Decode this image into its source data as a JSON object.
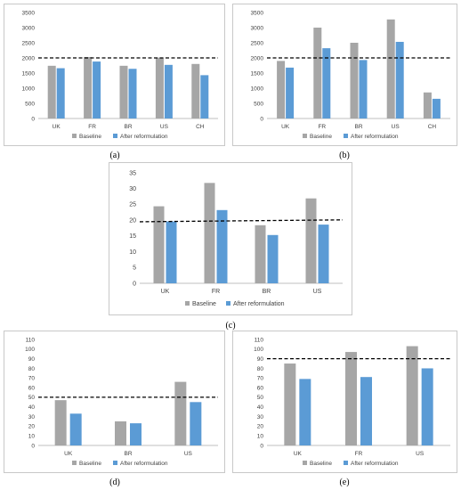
{
  "captions": [
    "(a)",
    "(b)",
    "(c)",
    "(d)",
    "(e)"
  ],
  "colors": {
    "baseline": "#a6a6a6",
    "after": "#5b9bd5",
    "axis": "#bfbfbf",
    "dash": "#000000",
    "text": "#404040"
  },
  "legend": {
    "baseline": "Baseline",
    "after": "After reformulation"
  },
  "chart_data": [
    {
      "id": "a",
      "type": "bar",
      "categories": [
        "UK",
        "FR",
        "BR",
        "US",
        "CH"
      ],
      "series": [
        {
          "name": "Baseline",
          "values": [
            1740,
            2030,
            1740,
            2010,
            1800
          ]
        },
        {
          "name": "After reformulation",
          "values": [
            1660,
            1880,
            1640,
            1770,
            1430
          ]
        }
      ],
      "ylim": [
        0,
        3500
      ],
      "yticks": [
        0,
        500,
        1000,
        1500,
        2000,
        2500,
        3000,
        3500
      ],
      "reference_line": 2000,
      "legend_position": "bottom",
      "grid": false
    },
    {
      "id": "b",
      "type": "bar",
      "categories": [
        "UK",
        "FR",
        "BR",
        "US",
        "CH"
      ],
      "series": [
        {
          "name": "Baseline",
          "values": [
            1900,
            3000,
            2500,
            3270,
            860
          ]
        },
        {
          "name": "After reformulation",
          "values": [
            1680,
            2320,
            1930,
            2530,
            650
          ]
        }
      ],
      "ylim": [
        0,
        3500
      ],
      "yticks": [
        0,
        500,
        1000,
        1500,
        2000,
        2500,
        3000,
        3500
      ],
      "reference_line": 2000,
      "legend_position": "bottom",
      "grid": false
    },
    {
      "id": "c",
      "type": "bar",
      "categories": [
        "UK",
        "FR",
        "BR",
        "US"
      ],
      "series": [
        {
          "name": "Baseline",
          "values": [
            24.4,
            31.8,
            18.4,
            26.9
          ]
        },
        {
          "name": "After reformulation",
          "values": [
            19.6,
            23.2,
            15.3,
            18.6
          ]
        }
      ],
      "ylim": [
        0,
        35
      ],
      "yticks": [
        0,
        5,
        10,
        15,
        20,
        25,
        30,
        35
      ],
      "reference_line": [
        19.5,
        20.1
      ],
      "legend_position": "bottom",
      "grid": false
    },
    {
      "id": "d",
      "type": "bar",
      "categories": [
        "UK",
        "BR",
        "US"
      ],
      "series": [
        {
          "name": "Baseline",
          "values": [
            47,
            25,
            66
          ]
        },
        {
          "name": "After reformulation",
          "values": [
            33,
            23,
            45
          ]
        }
      ],
      "ylim": [
        0,
        110
      ],
      "yticks": [
        0,
        10,
        20,
        30,
        40,
        50,
        60,
        70,
        80,
        90,
        100,
        110
      ],
      "reference_line": 50,
      "legend_position": "bottom",
      "grid": false
    },
    {
      "id": "e",
      "type": "bar",
      "categories": [
        "UK",
        "FR",
        "US"
      ],
      "series": [
        {
          "name": "Baseline",
          "values": [
            85,
            97,
            103
          ]
        },
        {
          "name": "After reformulation",
          "values": [
            69,
            71,
            80
          ]
        }
      ],
      "ylim": [
        0,
        110
      ],
      "yticks": [
        0,
        10,
        20,
        30,
        40,
        50,
        60,
        70,
        80,
        90,
        100,
        110
      ],
      "reference_line": 90,
      "legend_position": "bottom",
      "grid": false
    }
  ]
}
